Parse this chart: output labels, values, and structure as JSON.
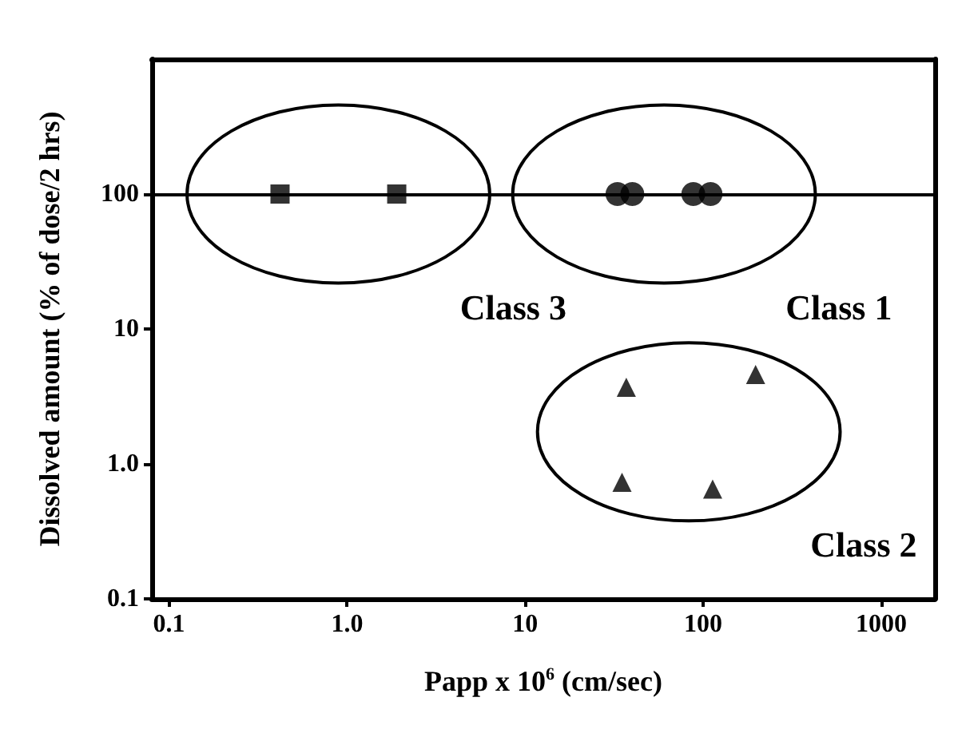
{
  "chart_data": {
    "type": "scatter",
    "xlabel": "Papp x 10$^{6}$ (cm/sec)",
    "ylabel": "Dissolved amount (% of dose/2 hrs)",
    "log": "xy",
    "xlim": [
      0.08,
      2000
    ],
    "ylim": [
      0.1,
      1000
    ],
    "xticks": [
      0.1,
      {
        "value": 1,
        "label": "1.0"
      },
      10,
      100,
      1000
    ],
    "yticks": [
      0.1,
      {
        "value": 1,
        "label": "1.0"
      },
      10,
      100
    ],
    "grid": false,
    "legend": false,
    "ref_lines": [
      {
        "axis": "y",
        "value": 100,
        "color": "#000000",
        "line_style": "solid"
      }
    ],
    "series": [
      {
        "name": "Class 3",
        "color": "#000000",
        "marker": "square",
        "x": [
          0.42,
          1.9
        ],
        "values": [
          100,
          100
        ]
      },
      {
        "name": "Class 1",
        "color": "#000000",
        "marker": "circle",
        "x": [
          33,
          40,
          88,
          110
        ],
        "values": [
          100,
          100,
          100,
          100
        ]
      },
      {
        "name": "Class 2",
        "color": "#000000",
        "marker": "triangle",
        "x": [
          37,
          197,
          35,
          113
        ],
        "values": [
          3.7,
          4.6,
          0.73,
          0.65
        ]
      }
    ]
  }
}
